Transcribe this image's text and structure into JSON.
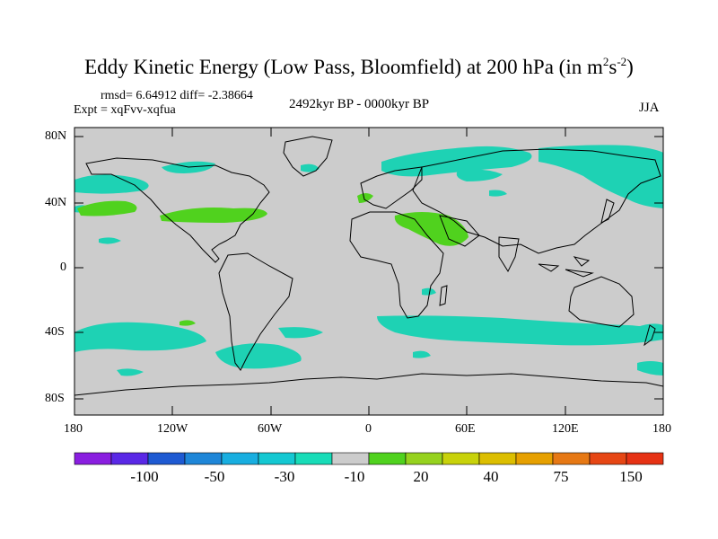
{
  "title_main": "Eddy Kinetic Energy (Low Pass, Bloomfield) at 200 hPa (in m",
  "title_sup1": "2",
  "title_mid": "s",
  "title_sup2": "-2",
  "title_end": ")",
  "stats": "rmsd= 6.64912  diff= -2.38664",
  "expt": "Expt = xqFvv-xqfua",
  "period": "2492kyr BP - 0000kyr BP",
  "season": "JJA",
  "lat_labels": [
    "80N",
    "40N",
    "0",
    "40S",
    "80S"
  ],
  "lon_labels": [
    "180",
    "120W",
    "60W",
    "0",
    "60E",
    "120E",
    "180"
  ],
  "colorbar": {
    "colors": [
      "#8a1ee0",
      "#5a28e6",
      "#1e5ad2",
      "#1e86d8",
      "#18aee0",
      "#14c8d2",
      "#18dcb8",
      "#cccccc",
      "#50d21e",
      "#96d21e",
      "#c8d20a",
      "#dcbe00",
      "#e6a000",
      "#e67814",
      "#e64614",
      "#e63214"
    ],
    "labels": [
      "-100",
      "-50",
      "-30",
      "-10",
      "20",
      "40",
      "75",
      "150"
    ]
  },
  "colors": {
    "ocean_land": "#cccccc",
    "neg": "#1ed2b4",
    "pos": "#50d21e"
  }
}
